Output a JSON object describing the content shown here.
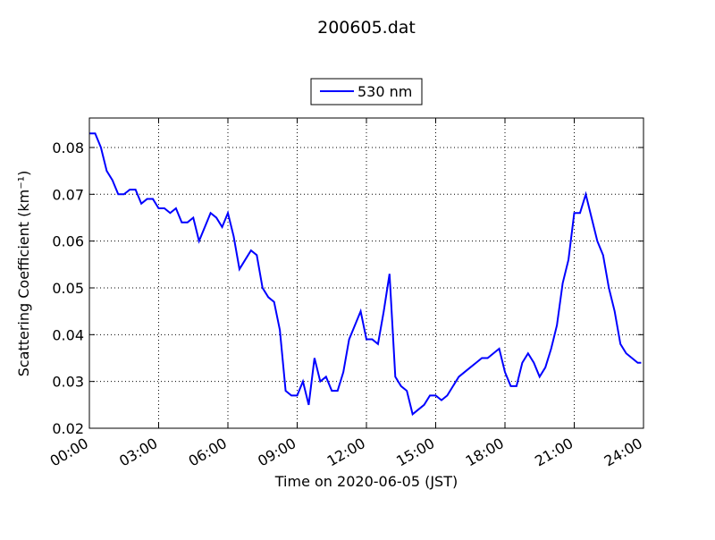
{
  "chart_data": {
    "type": "line",
    "title": "200605.dat",
    "xlabel": "Time on 2020-06-05 (JST)",
    "ylabel": "Scattering Coefficient (km⁻¹)",
    "x": [
      0,
      0.25,
      0.5,
      0.75,
      1,
      1.25,
      1.5,
      1.75,
      2,
      2.25,
      2.5,
      2.75,
      3,
      3.25,
      3.5,
      3.75,
      4,
      4.25,
      4.5,
      4.75,
      5,
      5.25,
      5.5,
      5.75,
      6,
      6.25,
      6.5,
      6.75,
      7,
      7.25,
      7.5,
      7.75,
      8,
      8.25,
      8.5,
      8.75,
      9,
      9.25,
      9.5,
      9.75,
      10,
      10.25,
      10.5,
      10.75,
      11,
      11.25,
      11.5,
      11.75,
      12,
      12.25,
      12.5,
      12.75,
      13,
      13.25,
      13.5,
      13.75,
      14,
      14.25,
      14.5,
      14.75,
      15,
      15.25,
      15.5,
      15.75,
      16,
      16.25,
      16.5,
      16.75,
      17,
      17.25,
      17.5,
      17.75,
      18,
      18.25,
      18.5,
      18.75,
      19,
      19.25,
      19.5,
      19.75,
      20,
      20.25,
      20.5,
      20.75,
      21,
      21.25,
      21.5,
      21.75,
      22,
      22.25,
      22.5,
      22.75,
      23,
      23.25,
      23.5,
      23.75,
      23.9
    ],
    "series": [
      {
        "name": "530 nm",
        "color": "#0000ff",
        "values": [
          0.083,
          0.083,
          0.08,
          0.075,
          0.073,
          0.07,
          0.07,
          0.071,
          0.071,
          0.068,
          0.069,
          0.069,
          0.067,
          0.067,
          0.066,
          0.067,
          0.064,
          0.064,
          0.065,
          0.06,
          0.063,
          0.066,
          0.065,
          0.063,
          0.066,
          0.061,
          0.054,
          0.056,
          0.058,
          0.057,
          0.05,
          0.048,
          0.047,
          0.041,
          0.028,
          0.027,
          0.027,
          0.03,
          0.025,
          0.035,
          0.03,
          0.031,
          0.028,
          0.028,
          0.032,
          0.039,
          0.042,
          0.045,
          0.039,
          0.039,
          0.038,
          0.045,
          0.053,
          0.031,
          0.029,
          0.028,
          0.023,
          0.024,
          0.025,
          0.027,
          0.027,
          0.026,
          0.027,
          0.029,
          0.031,
          0.032,
          0.033,
          0.034,
          0.035,
          0.035,
          0.036,
          0.037,
          0.032,
          0.029,
          0.029,
          0.034,
          0.036,
          0.034,
          0.031,
          0.033,
          0.037,
          0.042,
          0.051,
          0.056,
          0.066,
          0.066,
          0.07,
          0.065,
          0.06,
          0.057,
          0.05,
          0.045,
          0.038,
          0.036,
          0.035,
          0.034,
          0.034
        ]
      }
    ],
    "xlim": [
      0,
      24
    ],
    "xticks": [
      {
        "value": 0,
        "label": "00:00"
      },
      {
        "value": 3,
        "label": "03:00"
      },
      {
        "value": 6,
        "label": "06:00"
      },
      {
        "value": 9,
        "label": "09:00"
      },
      {
        "value": 12,
        "label": "12:00"
      },
      {
        "value": 15,
        "label": "15:00"
      },
      {
        "value": 18,
        "label": "18:00"
      },
      {
        "value": 21,
        "label": "21:00"
      },
      {
        "value": 24,
        "label": "24:00"
      }
    ],
    "ylim": [
      0.02,
      0.0863
    ],
    "yticks": [
      0.02,
      0.03,
      0.04,
      0.05,
      0.06,
      0.07,
      0.08
    ],
    "grid": true,
    "legend": "upper center"
  }
}
